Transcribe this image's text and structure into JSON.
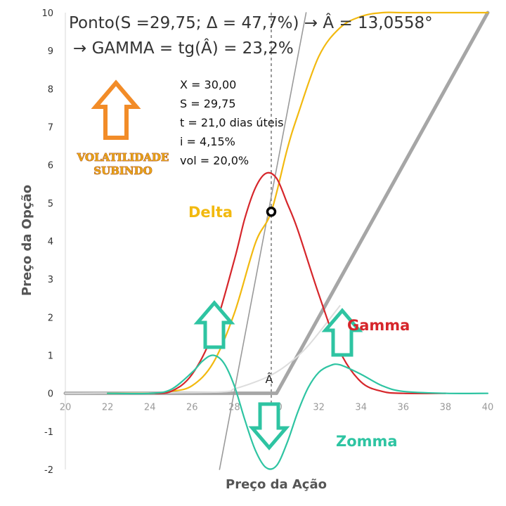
{
  "header": {
    "line1": "Ponto(S =29,75;   Δ = 47,7%) → Â = 13,0558°",
    "line2": "→ GAMMA = tg(Â) = 23,2%"
  },
  "params": [
    "X = 30,00",
    "S = 29,75",
    "t = 21,0 dias úteis",
    "i = 4,15%",
    "vol = 20,0%"
  ],
  "volatility_label": [
    "VOLATILIDADE",
    "SUBINDO"
  ],
  "angle_marker": "Â",
  "colors": {
    "delta": "#f2b90f",
    "gamma": "#d6262b",
    "zomma": "#2ec4a2",
    "payoff": "#a6a6a6",
    "arrow_orange": "#f28c28"
  },
  "chart_data": {
    "type": "line",
    "xlabel": "Preço da Ação",
    "ylabel": "Preço da Opção",
    "xlim": [
      20,
      40
    ],
    "ylim": [
      -2,
      10
    ],
    "xticks": [
      20,
      22,
      24,
      26,
      28,
      30,
      32,
      34,
      36,
      38,
      40
    ],
    "yticks": [
      -2,
      -1,
      0,
      1,
      2,
      3,
      4,
      5,
      6,
      7,
      8,
      9,
      10
    ],
    "series": [
      {
        "name": "Delta",
        "x": [
          22,
          24,
          25,
          26,
          27,
          28,
          29,
          29.75,
          30.5,
          31,
          32,
          33,
          34,
          35,
          36,
          38,
          40
        ],
        "y": [
          0,
          0,
          0.05,
          0.2,
          0.8,
          2.1,
          3.95,
          4.77,
          6.4,
          7.3,
          8.85,
          9.6,
          9.9,
          10,
          10,
          10,
          10
        ]
      },
      {
        "name": "Gamma",
        "x": [
          24,
          25,
          26,
          27,
          28,
          28.5,
          29,
          29.5,
          30,
          30.5,
          31,
          32,
          33,
          34,
          35,
          36,
          38
        ],
        "y": [
          0,
          0.05,
          0.5,
          1.6,
          3.5,
          4.6,
          5.4,
          5.78,
          5.65,
          5.0,
          4.3,
          2.6,
          1.1,
          0.3,
          0.05,
          0,
          0
        ]
      },
      {
        "name": "Zomma",
        "x": [
          22,
          24,
          25,
          26,
          26.5,
          27,
          27.5,
          28,
          28.5,
          29,
          29.5,
          30,
          30.5,
          31,
          31.5,
          32,
          32.5,
          33,
          34,
          35,
          36,
          38,
          40
        ],
        "y": [
          0,
          0,
          0.1,
          0.55,
          0.85,
          1.0,
          0.8,
          0.2,
          -0.7,
          -1.5,
          -1.95,
          -1.9,
          -1.3,
          -0.5,
          0.15,
          0.55,
          0.72,
          0.75,
          0.5,
          0.2,
          0.05,
          0,
          0
        ]
      },
      {
        "name": "",
        "x": [
          20,
          30,
          40
        ],
        "y": [
          0,
          0,
          10
        ]
      },
      {
        "name": "",
        "x": [
          20,
          27,
          28,
          29,
          29.75,
          30.5,
          31.5,
          33
        ],
        "y": [
          0,
          0.03,
          0.12,
          0.3,
          0.48,
          0.75,
          1.25,
          2.3
        ]
      },
      {
        "name": "",
        "x": [
          27.3,
          31.4
        ],
        "y": [
          -2,
          10
        ]
      }
    ],
    "point": {
      "x": 29.75,
      "y": 4.77
    },
    "annotations": [
      "Delta",
      "Gamma",
      "Zomma"
    ]
  }
}
